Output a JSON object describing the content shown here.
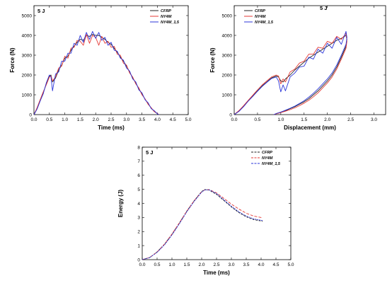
{
  "colors": {
    "CFRP": "#222222",
    "NY4M": "#e53935",
    "NY4M_1,5": "#2b35d9"
  },
  "chart_data": [
    {
      "id": "force-time",
      "type": "line",
      "title": "",
      "annotation": "5 J",
      "xlabel": "Time (ms)",
      "ylabel": "Force (N)",
      "xlim": [
        0,
        5
      ],
      "ylim": [
        0,
        5500
      ],
      "xticks": [
        "0.0",
        "0.5",
        "1.0",
        "1.5",
        "2.0",
        "2.5",
        "3.0",
        "3.5",
        "4.0",
        "4.5",
        "5.0"
      ],
      "yticks": [
        "0",
        "1000",
        "2000",
        "3000",
        "4000",
        "5000"
      ],
      "legend_position": "top-right",
      "series": [
        {
          "name": "CFRP",
          "x": [
            0,
            0.1,
            0.2,
            0.3,
            0.4,
            0.5,
            0.55,
            0.6,
            0.7,
            0.8,
            0.9,
            1.0,
            1.1,
            1.2,
            1.3,
            1.4,
            1.5,
            1.6,
            1.7,
            1.8,
            1.9,
            2.0,
            2.1,
            2.2,
            2.3,
            2.4,
            2.5,
            2.6,
            2.7,
            2.8,
            2.9,
            3.0,
            3.1,
            3.2,
            3.3,
            3.4,
            3.5,
            3.6,
            3.7,
            3.8,
            3.9,
            4.0,
            4.05
          ],
          "y": [
            0,
            300,
            700,
            1100,
            1550,
            1950,
            2000,
            1650,
            1850,
            2250,
            2500,
            2850,
            2950,
            3250,
            3450,
            3650,
            3800,
            3750,
            4000,
            3950,
            4050,
            4000,
            4000,
            3900,
            3800,
            3650,
            3550,
            3350,
            3150,
            2900,
            2700,
            2450,
            2150,
            1850,
            1600,
            1300,
            1050,
            780,
            550,
            330,
            160,
            50,
            0
          ]
        },
        {
          "name": "NY4M",
          "x": [
            0,
            0.1,
            0.2,
            0.3,
            0.4,
            0.5,
            0.55,
            0.6,
            0.7,
            0.8,
            0.9,
            1.0,
            1.1,
            1.2,
            1.3,
            1.4,
            1.5,
            1.6,
            1.7,
            1.8,
            1.9,
            2.0,
            2.1,
            2.2,
            2.3,
            2.4,
            2.5,
            2.6,
            2.7,
            2.8,
            2.9,
            3.0,
            3.1,
            3.2,
            3.3,
            3.4,
            3.5,
            3.6,
            3.7,
            3.8,
            3.9,
            4.0,
            4.05
          ],
          "y": [
            0,
            350,
            750,
            1150,
            1500,
            1900,
            1950,
            1700,
            1900,
            2350,
            2450,
            2950,
            2850,
            3350,
            3400,
            3750,
            3700,
            3500,
            4050,
            3600,
            4000,
            3900,
            3500,
            3950,
            3600,
            3700,
            3400,
            3450,
            3050,
            3000,
            2600,
            2500,
            2100,
            1900,
            1550,
            1350,
            1000,
            800,
            520,
            350,
            150,
            60,
            0
          ]
        },
        {
          "name": "NY4M_1,5",
          "x": [
            0,
            0.1,
            0.2,
            0.3,
            0.4,
            0.5,
            0.55,
            0.6,
            0.7,
            0.8,
            0.9,
            1.0,
            1.1,
            1.2,
            1.3,
            1.4,
            1.5,
            1.6,
            1.7,
            1.8,
            1.9,
            2.0,
            2.1,
            2.2,
            2.3,
            2.4,
            2.5,
            2.6,
            2.7,
            2.8,
            2.9,
            3.0,
            3.1,
            3.2,
            3.3,
            3.4,
            3.5,
            3.6,
            3.7,
            3.8,
            3.9,
            4.0,
            4.05
          ],
          "y": [
            0,
            280,
            680,
            1050,
            1600,
            2000,
            1900,
            1200,
            2050,
            2150,
            2700,
            2700,
            3100,
            3100,
            3600,
            3500,
            4000,
            3650,
            4150,
            3800,
            4200,
            3850,
            4150,
            3750,
            3900,
            3500,
            3650,
            3250,
            3200,
            2850,
            2750,
            2350,
            2200,
            1800,
            1650,
            1250,
            1100,
            750,
            600,
            300,
            200,
            40,
            0
          ]
        }
      ]
    },
    {
      "id": "force-displacement",
      "type": "line",
      "title": "",
      "annotation": "5 J",
      "xlabel": "Displacement (mm)",
      "ylabel": "Force (N)",
      "xlim": [
        0,
        3.25
      ],
      "ylim": [
        0,
        5500
      ],
      "xticks": [
        "0.0",
        "0.5",
        "1.0",
        "1.5",
        "2.0",
        "2.5",
        "3.0"
      ],
      "yticks": [
        "0",
        "1000",
        "2000",
        "3000",
        "4000",
        "5000"
      ],
      "legend_position": "top-left",
      "series": [
        {
          "name": "CFRP",
          "x": [
            0,
            0.1,
            0.2,
            0.3,
            0.4,
            0.5,
            0.6,
            0.7,
            0.8,
            0.9,
            0.95,
            1.0,
            1.05,
            1.1,
            1.2,
            1.3,
            1.4,
            1.5,
            1.6,
            1.7,
            1.8,
            1.9,
            2.0,
            2.1,
            2.2,
            2.3,
            2.4,
            2.42,
            2.4,
            2.3,
            2.2,
            2.1,
            2.0,
            1.9,
            1.8,
            1.7,
            1.6,
            1.5,
            1.4,
            1.3,
            1.2,
            1.1,
            1.0,
            0.9,
            0.85
          ],
          "y": [
            0,
            180,
            420,
            700,
            950,
            1200,
            1450,
            1650,
            1850,
            1950,
            1900,
            1700,
            1650,
            1800,
            2000,
            2250,
            2450,
            2650,
            2850,
            3000,
            3150,
            3300,
            3450,
            3600,
            3750,
            3850,
            4000,
            3800,
            3450,
            2900,
            2400,
            2000,
            1700,
            1450,
            1200,
            1000,
            800,
            650,
            520,
            400,
            300,
            200,
            120,
            50,
            0
          ]
        },
        {
          "name": "NY4M",
          "x": [
            0,
            0.1,
            0.2,
            0.3,
            0.4,
            0.5,
            0.6,
            0.7,
            0.8,
            0.9,
            0.95,
            1.0,
            1.05,
            1.1,
            1.2,
            1.3,
            1.4,
            1.5,
            1.6,
            1.7,
            1.8,
            1.9,
            2.0,
            2.1,
            2.2,
            2.3,
            2.4,
            2.42,
            2.4,
            2.3,
            2.2,
            2.1,
            2.0,
            1.9,
            1.8,
            1.7,
            1.6,
            1.5,
            1.4,
            1.3,
            1.2,
            1.1,
            1.0,
            0.9,
            0.85
          ],
          "y": [
            0,
            200,
            450,
            720,
            980,
            1250,
            1500,
            1700,
            1900,
            2000,
            1950,
            1550,
            1800,
            1650,
            2150,
            2300,
            2600,
            2700,
            3050,
            3050,
            3400,
            3350,
            3700,
            3600,
            3950,
            3800,
            4100,
            3700,
            3350,
            2800,
            2300,
            1900,
            1600,
            1350,
            1100,
            900,
            720,
            580,
            450,
            340,
            250,
            170,
            100,
            40,
            0
          ]
        },
        {
          "name": "NY4M_1,5",
          "x": [
            0,
            0.1,
            0.2,
            0.3,
            0.4,
            0.5,
            0.6,
            0.7,
            0.8,
            0.9,
            0.95,
            1.0,
            1.05,
            1.1,
            1.2,
            1.3,
            1.4,
            1.5,
            1.6,
            1.7,
            1.8,
            1.9,
            2.0,
            2.1,
            2.2,
            2.3,
            2.4,
            2.42,
            2.4,
            2.3,
            2.2,
            2.1,
            2.0,
            1.9,
            1.8,
            1.7,
            1.6,
            1.5,
            1.4,
            1.3,
            1.2,
            1.1,
            1.0,
            0.9,
            0.85
          ],
          "y": [
            0,
            160,
            400,
            680,
            920,
            1180,
            1420,
            1630,
            1820,
            1900,
            1700,
            1150,
            1500,
            1200,
            1900,
            2100,
            2400,
            2450,
            2900,
            2800,
            3300,
            3100,
            3600,
            3350,
            3900,
            3550,
            4200,
            3900,
            3550,
            3000,
            2500,
            2100,
            1800,
            1550,
            1300,
            1080,
            880,
            700,
            560,
            430,
            320,
            220,
            130,
            55,
            0
          ]
        }
      ]
    },
    {
      "id": "energy-time",
      "type": "line",
      "title": "",
      "annotation": "5 J",
      "xlabel": "Time (ms)",
      "ylabel": "Energy (J)",
      "xlim": [
        0,
        5
      ],
      "ylim": [
        0,
        8
      ],
      "xticks": [
        "0.0",
        "0.5",
        "1.0",
        "1.5",
        "2.0",
        "2.5",
        "3.0",
        "3.5",
        "4.0",
        "4.5",
        "5.0"
      ],
      "yticks": [
        "0",
        "1",
        "2",
        "3",
        "4",
        "5",
        "6",
        "7",
        "8"
      ],
      "legend_position": "top-right",
      "series": [
        {
          "name": "CFRP",
          "x": [
            0,
            0.25,
            0.5,
            0.75,
            1.0,
            1.25,
            1.5,
            1.75,
            2.0,
            2.1,
            2.25,
            2.5,
            2.75,
            3.0,
            3.25,
            3.5,
            3.75,
            4.0,
            4.05
          ],
          "y": [
            0,
            0.15,
            0.55,
            1.1,
            1.8,
            2.6,
            3.45,
            4.2,
            4.85,
            4.98,
            4.95,
            4.65,
            4.2,
            3.75,
            3.35,
            3.05,
            2.85,
            2.75,
            2.72
          ]
        },
        {
          "name": "NY4M",
          "x": [
            0,
            0.25,
            0.5,
            0.75,
            1.0,
            1.25,
            1.5,
            1.75,
            2.0,
            2.1,
            2.25,
            2.5,
            2.75,
            3.0,
            3.25,
            3.5,
            3.75,
            4.0,
            4.05
          ],
          "y": [
            0,
            0.15,
            0.55,
            1.1,
            1.82,
            2.62,
            3.45,
            4.2,
            4.82,
            4.95,
            4.98,
            4.75,
            4.35,
            3.95,
            3.6,
            3.3,
            3.1,
            3.0,
            3.0
          ]
        },
        {
          "name": "NY4M_1,5",
          "x": [
            0,
            0.25,
            0.5,
            0.75,
            1.0,
            1.25,
            1.5,
            1.75,
            2.0,
            2.1,
            2.25,
            2.5,
            2.75,
            3.0,
            3.25,
            3.5,
            3.75,
            4.0,
            4.05
          ],
          "y": [
            0,
            0.14,
            0.52,
            1.05,
            1.75,
            2.55,
            3.4,
            4.15,
            4.8,
            4.95,
            4.97,
            4.7,
            4.25,
            3.8,
            3.4,
            3.1,
            2.9,
            2.8,
            2.78
          ]
        }
      ]
    }
  ]
}
